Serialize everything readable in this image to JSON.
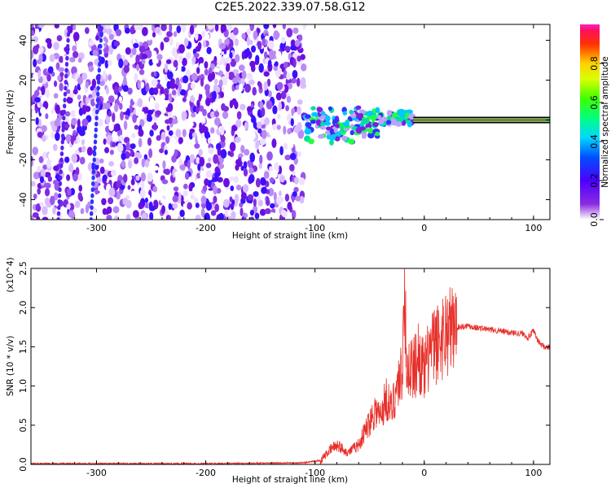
{
  "title": "C2E5.2022.339.07.58.G12",
  "colors": {
    "spectrogram_low": "#8a2be2",
    "spectrogram_lane": "#3030ff",
    "snr_line": "#e8302a",
    "frame": "#000000"
  },
  "chart_data": [
    {
      "type": "heatmap",
      "title": "C2E5.2022.339.07.58.G12",
      "xlabel": "Height of straight line (km)",
      "ylabel": "Frequency (Hz)",
      "xlim": [
        -360,
        115
      ],
      "ylim": [
        -50,
        48
      ],
      "x_ticks": [
        -300,
        -200,
        -100,
        0,
        100
      ],
      "y_ticks": [
        -40,
        -20,
        0,
        20,
        40
      ],
      "colorbar": {
        "label": "Normalized spectral amplitude",
        "range": [
          0.0,
          1.0
        ],
        "ticks": [
          0.0,
          0.2,
          0.4,
          0.6,
          0.8
        ],
        "colormap": "rainbow (purple-blue-cyan-green-yellow-red)"
      },
      "regions": [
        {
          "x": [
            -360,
            -110
          ],
          "y": [
            -50,
            48
          ],
          "level": 0.05,
          "description": "noise"
        },
        {
          "x": [
            -110,
            -10
          ],
          "y": [
            -10,
            7
          ],
          "level": 0.45,
          "description": "signal onset"
        },
        {
          "x": [
            -10,
            115
          ],
          "y": [
            0,
            0
          ],
          "level": 0.9,
          "description": "carrier tone"
        }
      ],
      "grid": false
    },
    {
      "type": "line",
      "xlabel": "Height of straight line (km)",
      "ylabel": "SNR (10 * v/v)",
      "y_scale_label": "(x10^4)",
      "xlim": [
        -360,
        115
      ],
      "ylim": [
        0.0,
        2.5
      ],
      "x_ticks": [
        -300,
        -200,
        -100,
        0,
        100
      ],
      "y_ticks": [
        0.0,
        0.5,
        1.0,
        1.5,
        2.0,
        2.5
      ],
      "series": [
        {
          "color": "#e8302a",
          "x": [
            -360,
            -300,
            -200,
            -110,
            -95,
            -85,
            -80,
            -70,
            -60,
            -55,
            -50,
            -45,
            -40,
            -35,
            -30,
            -25,
            -20,
            -18,
            -16,
            -15,
            -10,
            -5,
            0,
            5,
            10,
            15,
            20,
            25,
            30,
            35,
            40,
            45,
            50,
            60,
            70,
            80,
            90,
            95,
            100,
            105,
            110,
            115
          ],
          "values": [
            0.01,
            0.01,
            0.01,
            0.02,
            0.05,
            0.2,
            0.25,
            0.15,
            0.25,
            0.4,
            0.55,
            0.7,
            0.6,
            0.85,
            0.7,
            1.0,
            1.2,
            2.5,
            0.8,
            1.3,
            1.2,
            1.4,
            1.15,
            1.45,
            1.5,
            1.6,
            1.7,
            1.72,
            1.75,
            1.76,
            1.77,
            1.75,
            1.74,
            1.72,
            1.7,
            1.68,
            1.67,
            1.62,
            1.7,
            1.55,
            1.5,
            1.49
          ]
        }
      ],
      "grid": false
    }
  ]
}
